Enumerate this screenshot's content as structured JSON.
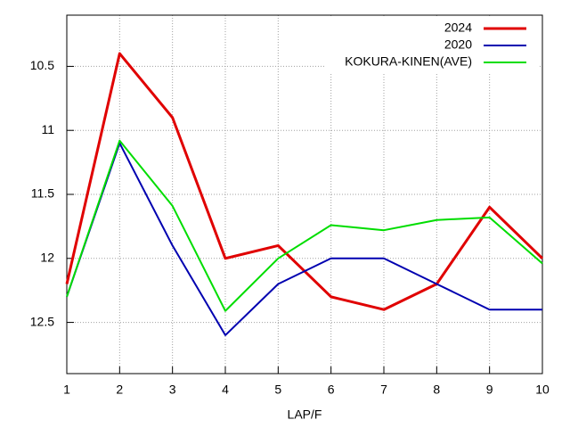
{
  "chart_data": {
    "type": "line",
    "x": [
      1,
      2,
      3,
      4,
      5,
      6,
      7,
      8,
      9,
      10
    ],
    "xlabel": "LAP/F",
    "xlim": [
      1,
      10
    ],
    "xticks": [
      1,
      2,
      3,
      4,
      5,
      6,
      7,
      8,
      9,
      10
    ],
    "ylim": [
      12.9,
      10.1
    ],
    "yticks": [
      10.5,
      11,
      11.5,
      12,
      12.5
    ],
    "grid": true,
    "legend": "top-right",
    "series": [
      {
        "name": "2024",
        "color": "#e00000",
        "width": 3,
        "values": [
          12.2,
          10.4,
          10.9,
          12.0,
          11.9,
          12.3,
          12.4,
          12.2,
          11.6,
          12.0
        ]
      },
      {
        "name": "2020",
        "color": "#0000b0",
        "width": 2,
        "values": [
          12.3,
          11.1,
          11.9,
          12.6,
          12.2,
          12.0,
          12.0,
          12.2,
          12.4,
          12.4
        ]
      },
      {
        "name": "KOKURA-KINEN(AVE)",
        "color": "#00dd00",
        "width": 2,
        "values": [
          12.3,
          11.08,
          11.59,
          12.41,
          12.0,
          11.74,
          11.78,
          11.7,
          11.68,
          12.04
        ]
      }
    ]
  }
}
